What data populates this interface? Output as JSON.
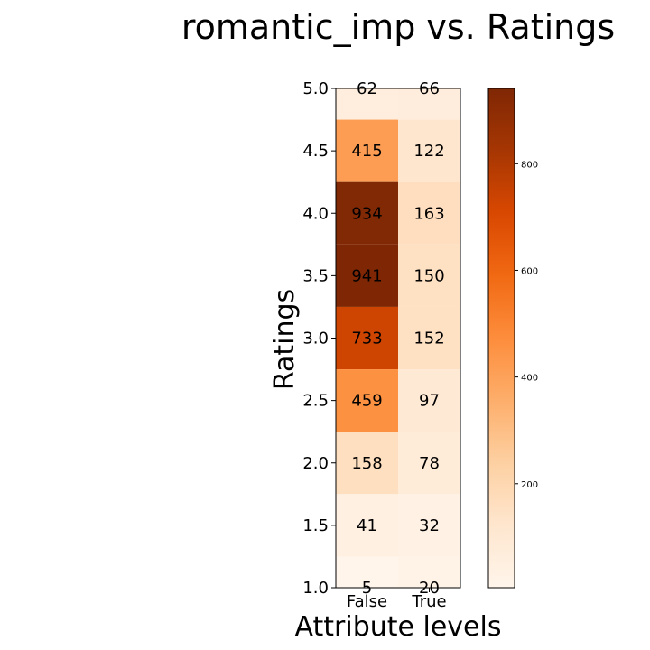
{
  "chart_data": {
    "type": "heatmap",
    "title": "romantic_imp vs. Ratings",
    "xlabel": "Attribute levels",
    "ylabel": "Ratings",
    "x_categories": [
      "False",
      "True"
    ],
    "y_ticks": [
      "1.0",
      "1.5",
      "2.0",
      "2.5",
      "3.0",
      "3.5",
      "4.0",
      "4.5",
      "5.0"
    ],
    "rows": [
      {
        "rating": "5.0",
        "values": [
          62,
          66
        ]
      },
      {
        "rating": "4.5",
        "values": [
          415,
          122
        ]
      },
      {
        "rating": "4.0",
        "values": [
          934,
          163
        ]
      },
      {
        "rating": "3.5",
        "values": [
          941,
          150
        ]
      },
      {
        "rating": "3.0",
        "values": [
          733,
          152
        ]
      },
      {
        "rating": "2.5",
        "values": [
          459,
          97
        ]
      },
      {
        "rating": "2.0",
        "values": [
          158,
          78
        ]
      },
      {
        "rating": "1.5",
        "values": [
          41,
          32
        ]
      },
      {
        "rating": "1.0",
        "values": [
          5,
          20
        ]
      }
    ],
    "colormap": "Oranges",
    "colorbar": {
      "min": 5,
      "max": 941,
      "ticks": [
        "200",
        "400",
        "600",
        "800"
      ]
    }
  }
}
